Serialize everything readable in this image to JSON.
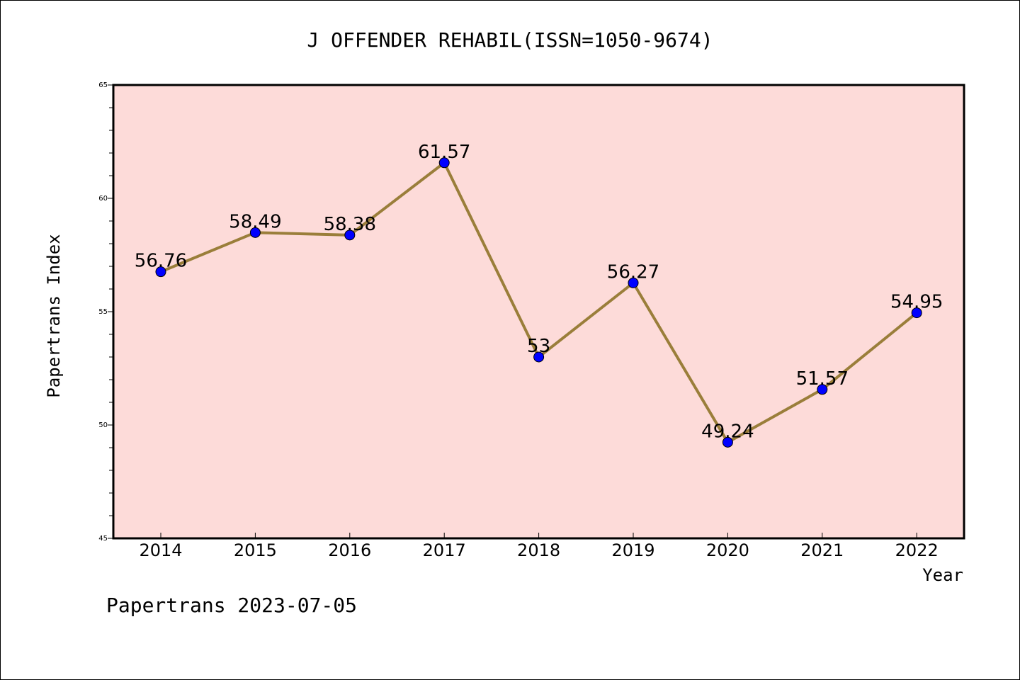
{
  "chart_data": {
    "type": "line",
    "title": "J OFFENDER REHABIL(ISSN=1050-9674)",
    "xlabel": "Year",
    "ylabel": "Papertrans Index",
    "categories": [
      "2014",
      "2015",
      "2016",
      "2017",
      "2018",
      "2019",
      "2020",
      "2021",
      "2022"
    ],
    "values": [
      56.76,
      58.49,
      58.38,
      61.57,
      53,
      56.27,
      49.24,
      51.57,
      54.95
    ],
    "data_labels": [
      "56.76",
      "58.49",
      "58.38",
      "61.57",
      "53",
      "56.27",
      "49.24",
      "51.57",
      "54.95"
    ],
    "ylim": [
      45,
      65
    ],
    "yticks": [
      "45",
      "50",
      "55",
      "60",
      "65"
    ],
    "grid": false,
    "legend": "none",
    "colors": {
      "plot_background": "#fddbd9",
      "line": "#9a7e3a",
      "marker": "#0000ff"
    }
  },
  "footer": "Papertrans 2023-07-05"
}
